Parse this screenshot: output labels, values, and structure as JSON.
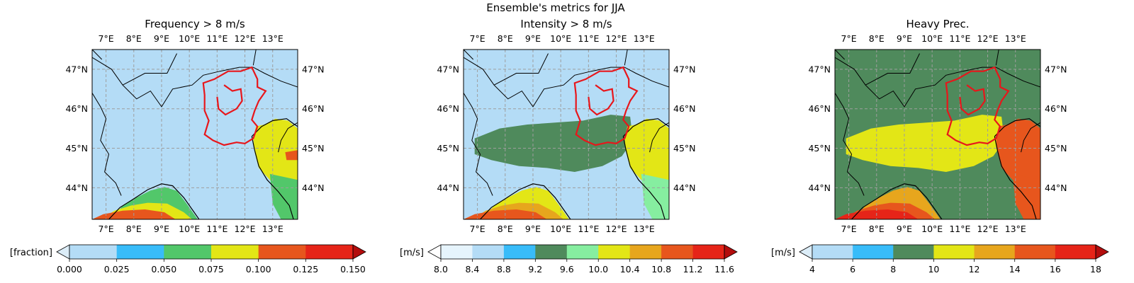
{
  "figure_title": "Ensemble's metrics for JJA",
  "colors": {
    "grid": "#9e9e9e",
    "coast": "#000000",
    "region": "#e8161b",
    "frame": "#000000"
  },
  "chart_data": [
    {
      "type": "heatmap",
      "title": "Frequency > 8 m/s",
      "x_ticklabels": [
        "7°E",
        "8°E",
        "9°E",
        "10°E",
        "11°E",
        "12°E",
        "13°E"
      ],
      "y_ticklabels": [
        "47°N",
        "46°N",
        "45°N",
        "44°N"
      ],
      "xlim": [
        6.5,
        13.9
      ],
      "ylim": [
        43.2,
        47.5
      ],
      "grid": true,
      "colorbar": {
        "label": "[fraction]",
        "ticks": [
          "0.000",
          "0.025",
          "0.050",
          "0.075",
          "0.100",
          "0.125",
          "0.150"
        ],
        "bounds": [
          0.0,
          0.025,
          0.05,
          0.075,
          0.1,
          0.125,
          0.15
        ],
        "colors": [
          "#b4dcf6",
          "#38bcf9",
          "#52c76a",
          "#e3e616",
          "#e7561d",
          "#e62418"
        ],
        "under_color": "#dcedf8",
        "over_color": "#b30d0d",
        "extend": "both"
      },
      "field": {
        "background": 0.02,
        "regions": [
          {
            "area": "ligurian-sea-core",
            "value": 0.06
          },
          {
            "area": "ligurian-sea-south",
            "value": 0.08
          },
          {
            "area": "ligurian-sea-southwest",
            "value": 0.11
          },
          {
            "area": "northern-adriatic",
            "value": 0.08
          },
          {
            "area": "adriatic-south",
            "value": 0.065
          },
          {
            "area": "adriatic-east-patch",
            "value": 0.11
          }
        ]
      }
    },
    {
      "type": "heatmap",
      "title": "Intensity > 8 m/s",
      "x_ticklabels": [
        "7°E",
        "8°E",
        "9°E",
        "10°E",
        "11°E",
        "12°E",
        "13°E"
      ],
      "y_ticklabels": [
        "47°N",
        "46°N",
        "45°N",
        "44°N"
      ],
      "xlim": [
        6.5,
        13.9
      ],
      "ylim": [
        43.2,
        47.5
      ],
      "grid": true,
      "colorbar": {
        "label": "[m/s]",
        "ticks": [
          "8.0",
          "8.4",
          "8.8",
          "9.2",
          "9.6",
          "10.0",
          "10.4",
          "10.8",
          "11.2",
          "11.6"
        ],
        "bounds": [
          8.0,
          8.4,
          8.8,
          9.2,
          9.6,
          10.0,
          10.4,
          10.8,
          11.2,
          11.6
        ],
        "colors": [
          "#e6f4fc",
          "#b4dcf6",
          "#38bcf9",
          "#4f8a5c",
          "#86eea0",
          "#e3e616",
          "#e7a61d",
          "#e7561d",
          "#e62418"
        ],
        "under_color": "#ffffff",
        "over_color": "#b30d0d",
        "extend": "both"
      },
      "field": {
        "background": 8.6,
        "regions": [
          {
            "area": "po-valley-band",
            "value": 9.3
          },
          {
            "area": "northern-adriatic",
            "value": 10.2
          },
          {
            "area": "adriatic-south",
            "value": 9.8
          },
          {
            "area": "ligurian-sea-core",
            "value": 10.2
          },
          {
            "area": "ligurian-sea-south",
            "value": 10.6
          },
          {
            "area": "ligurian-sea-southwest",
            "value": 11.0
          }
        ]
      }
    },
    {
      "type": "heatmap",
      "title": "Heavy Prec.",
      "x_ticklabels": [
        "7°E",
        "8°E",
        "9°E",
        "10°E",
        "11°E",
        "12°E",
        "13°E"
      ],
      "y_ticklabels": [
        "47°N",
        "46°N",
        "45°N",
        "44°N"
      ],
      "xlim": [
        6.5,
        13.9
      ],
      "ylim": [
        43.2,
        47.5
      ],
      "grid": true,
      "colorbar": {
        "label": "[m/s]",
        "ticks": [
          "4",
          "6",
          "8",
          "10",
          "12",
          "14",
          "16",
          "18"
        ],
        "bounds": [
          4,
          6,
          8,
          10,
          12,
          14,
          16,
          18
        ],
        "colors": [
          "#b4dcf6",
          "#38bcf9",
          "#4f8a5c",
          "#e3e616",
          "#e7a61d",
          "#e7561d",
          "#e62418"
        ],
        "under_color": "#dcedf8",
        "over_color": "#b30d0d",
        "extend": "both"
      },
      "field": {
        "background": 9,
        "regions": [
          {
            "area": "po-valley-band",
            "value": 11
          },
          {
            "area": "northern-adriatic",
            "value": 15
          },
          {
            "area": "adriatic-south",
            "value": 14.5
          },
          {
            "area": "ligurian-sea-core",
            "value": 13
          },
          {
            "area": "ligurian-sea-south",
            "value": 15
          },
          {
            "area": "ligurian-sea-southwest",
            "value": 16.5
          }
        ]
      }
    }
  ]
}
